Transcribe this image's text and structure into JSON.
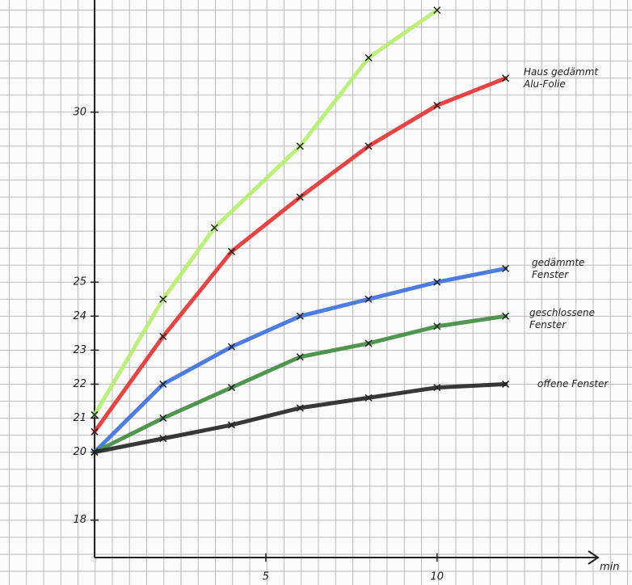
{
  "chart_data": {
    "type": "line",
    "x_label": "min",
    "xlim": [
      0,
      14.7
    ],
    "ylim": [
      16.9,
      33.3
    ],
    "xticks": [
      5,
      10
    ],
    "yticks": [
      18,
      20,
      21,
      22,
      23,
      24,
      25,
      30
    ],
    "grid": true,
    "series": [
      {
        "color": "#b6ee6c",
        "x": [
          0,
          2,
          3.5,
          6,
          8,
          10
        ],
        "values": [
          21.1,
          24.5,
          26.6,
          29.0,
          31.6,
          33.0
        ]
      },
      {
        "name": "Haus gedämmt Alu-Folie",
        "color": "#e53030",
        "x": [
          0,
          2,
          4,
          6,
          8,
          10,
          12
        ],
        "values": [
          20.6,
          23.4,
          25.9,
          27.5,
          29.0,
          30.2,
          31.0
        ]
      },
      {
        "name": "gedämmte Fenster",
        "color": "#3a6fe0",
        "x": [
          0,
          2,
          4,
          6,
          8,
          10,
          12
        ],
        "values": [
          20.0,
          22.0,
          23.1,
          24.0,
          24.5,
          25.0,
          25.4
        ]
      },
      {
        "name": "geschlossene Fenster",
        "color": "#3d8b3d",
        "x": [
          0,
          2,
          4,
          6,
          8,
          10,
          12
        ],
        "values": [
          20.0,
          21.0,
          21.9,
          22.8,
          23.2,
          23.7,
          24.0
        ]
      },
      {
        "name": "offene Fenster",
        "color": "#222222",
        "x": [
          0,
          2,
          4,
          6,
          8,
          10,
          12
        ],
        "values": [
          20.0,
          20.4,
          20.8,
          21.3,
          21.6,
          21.9,
          22.0
        ]
      }
    ]
  }
}
